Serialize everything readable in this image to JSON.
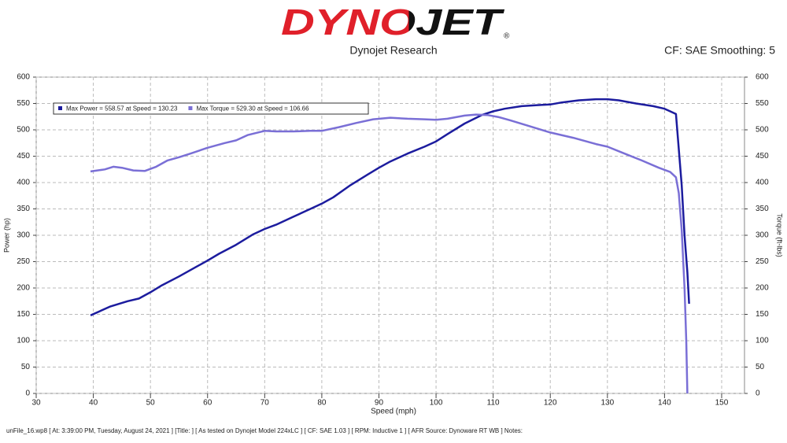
{
  "header": {
    "logo": "DYNOJET",
    "registered": "®",
    "subtitle": "Dynojet Research",
    "settings": "CF: SAE Smoothing: 5"
  },
  "chart_data": {
    "type": "line",
    "xlabel": "Speed (mph)",
    "ylabel": "Power (hp)",
    "y2label": "Torque (ft-lbs)",
    "xlim": [
      30,
      154
    ],
    "xticks": [
      30,
      40,
      50,
      60,
      70,
      80,
      90,
      100,
      110,
      120,
      130,
      140,
      150
    ],
    "ylim": [
      0,
      600
    ],
    "yticks": [
      0,
      50,
      100,
      150,
      200,
      250,
      300,
      350,
      400,
      450,
      500,
      550,
      600
    ],
    "y2lim": [
      0,
      600
    ],
    "y2ticks": [
      0,
      50,
      100,
      150,
      200,
      250,
      300,
      350,
      400,
      450,
      500,
      550,
      600
    ],
    "grid": true,
    "legend": "top-left",
    "series": [
      {
        "name": "Max Power = 558.57 at Speed = 130.23",
        "color": "#1c1c9e",
        "x": [
          39.5,
          43,
          46,
          48,
          50,
          52,
          55,
          58,
          60,
          62,
          65,
          68,
          70,
          72,
          75,
          78,
          80,
          82,
          85,
          88,
          90,
          92,
          95,
          98,
          100,
          102,
          105,
          108,
          110,
          112,
          115,
          118,
          120,
          122,
          125,
          128,
          130,
          132,
          135,
          138,
          140,
          141,
          142,
          143,
          143.5,
          144,
          144.3
        ],
        "values": [
          148,
          165,
          175,
          180,
          192,
          205,
          222,
          240,
          252,
          265,
          282,
          302,
          312,
          320,
          335,
          350,
          360,
          372,
          395,
          415,
          428,
          440,
          455,
          468,
          478,
          492,
          512,
          528,
          535,
          540,
          545,
          547,
          548,
          552,
          556,
          558,
          558,
          556,
          550,
          545,
          540,
          535,
          530,
          395,
          300,
          230,
          170
        ]
      },
      {
        "name": "Max Torque = 529.30 at Speed = 106.66",
        "color": "#7a6fd6",
        "axis": "y2",
        "x": [
          39.5,
          42,
          43.5,
          45,
          47,
          49,
          51,
          53,
          55,
          57,
          60,
          63,
          65,
          67,
          70,
          72,
          75,
          78,
          80,
          83,
          86,
          89,
          92,
          95,
          98,
          100,
          102,
          105,
          107,
          109,
          111,
          113,
          116,
          120,
          124,
          128,
          130,
          133,
          136,
          139,
          141,
          142,
          142.5,
          143,
          143.5,
          143.8,
          144
        ],
        "values": [
          421,
          425,
          430,
          428,
          423,
          422,
          430,
          442,
          448,
          455,
          466,
          475,
          480,
          490,
          498,
          497,
          497,
          498,
          498,
          505,
          513,
          520,
          523,
          521,
          520,
          519,
          521,
          527,
          529,
          528,
          524,
          518,
          508,
          495,
          485,
          473,
          468,
          455,
          442,
          428,
          420,
          410,
          380,
          310,
          200,
          100,
          0
        ]
      }
    ]
  },
  "footer": "unFile_16.wp8 [ At: 3:39:00 PM, Tuesday, August 24, 2021 ] [Title: ] [ As tested on Dynojet Model 224xLC ] [ CF: SAE 1.03 ] [ RPM: Inductive 1 ] [ AFR Source: Dynoware RT WB ] Notes:"
}
